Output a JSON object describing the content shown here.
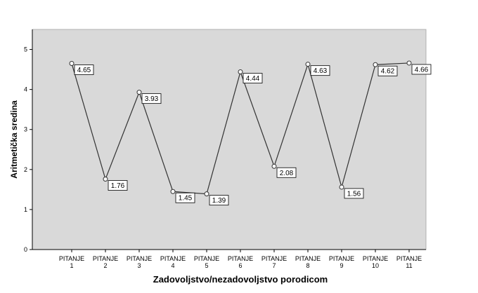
{
  "chart_data": {
    "type": "line",
    "xlabel": "Zadovoljstvo/nezadovoljstvo porodicom",
    "ylabel": "Aritmetička sredina",
    "ylim": [
      0,
      5.5
    ],
    "y_ticks": [
      "0",
      "1",
      "2",
      "3",
      "4",
      "5"
    ],
    "grid": false,
    "background": "#d9d9d9",
    "line_color": "#333333",
    "categories": [
      {
        "line1": "PITANJE",
        "line2": "1"
      },
      {
        "line1": "PITANJE",
        "line2": "2"
      },
      {
        "line1": "PITANJE",
        "line2": "3"
      },
      {
        "line1": "PITANJE",
        "line2": "4"
      },
      {
        "line1": "PITANJE",
        "line2": "5"
      },
      {
        "line1": "PITANJE",
        "line2": "6"
      },
      {
        "line1": "PITANJE",
        "line2": "7"
      },
      {
        "line1": "PITANJE",
        "line2": "8"
      },
      {
        "line1": "PITANJE",
        "line2": "9"
      },
      {
        "line1": "PITANJE",
        "line2": "10"
      },
      {
        "line1": "PITANJE",
        "line2": "11"
      }
    ],
    "values": [
      4.65,
      1.76,
      3.93,
      1.45,
      1.39,
      4.44,
      2.08,
      4.63,
      1.56,
      4.62,
      4.66
    ],
    "value_labels": [
      "4.65",
      "1.76",
      "3.93",
      "1.45",
      "1.39",
      "4.44",
      "2.08",
      "4.63",
      "1.56",
      "4.62",
      "4.66"
    ]
  }
}
